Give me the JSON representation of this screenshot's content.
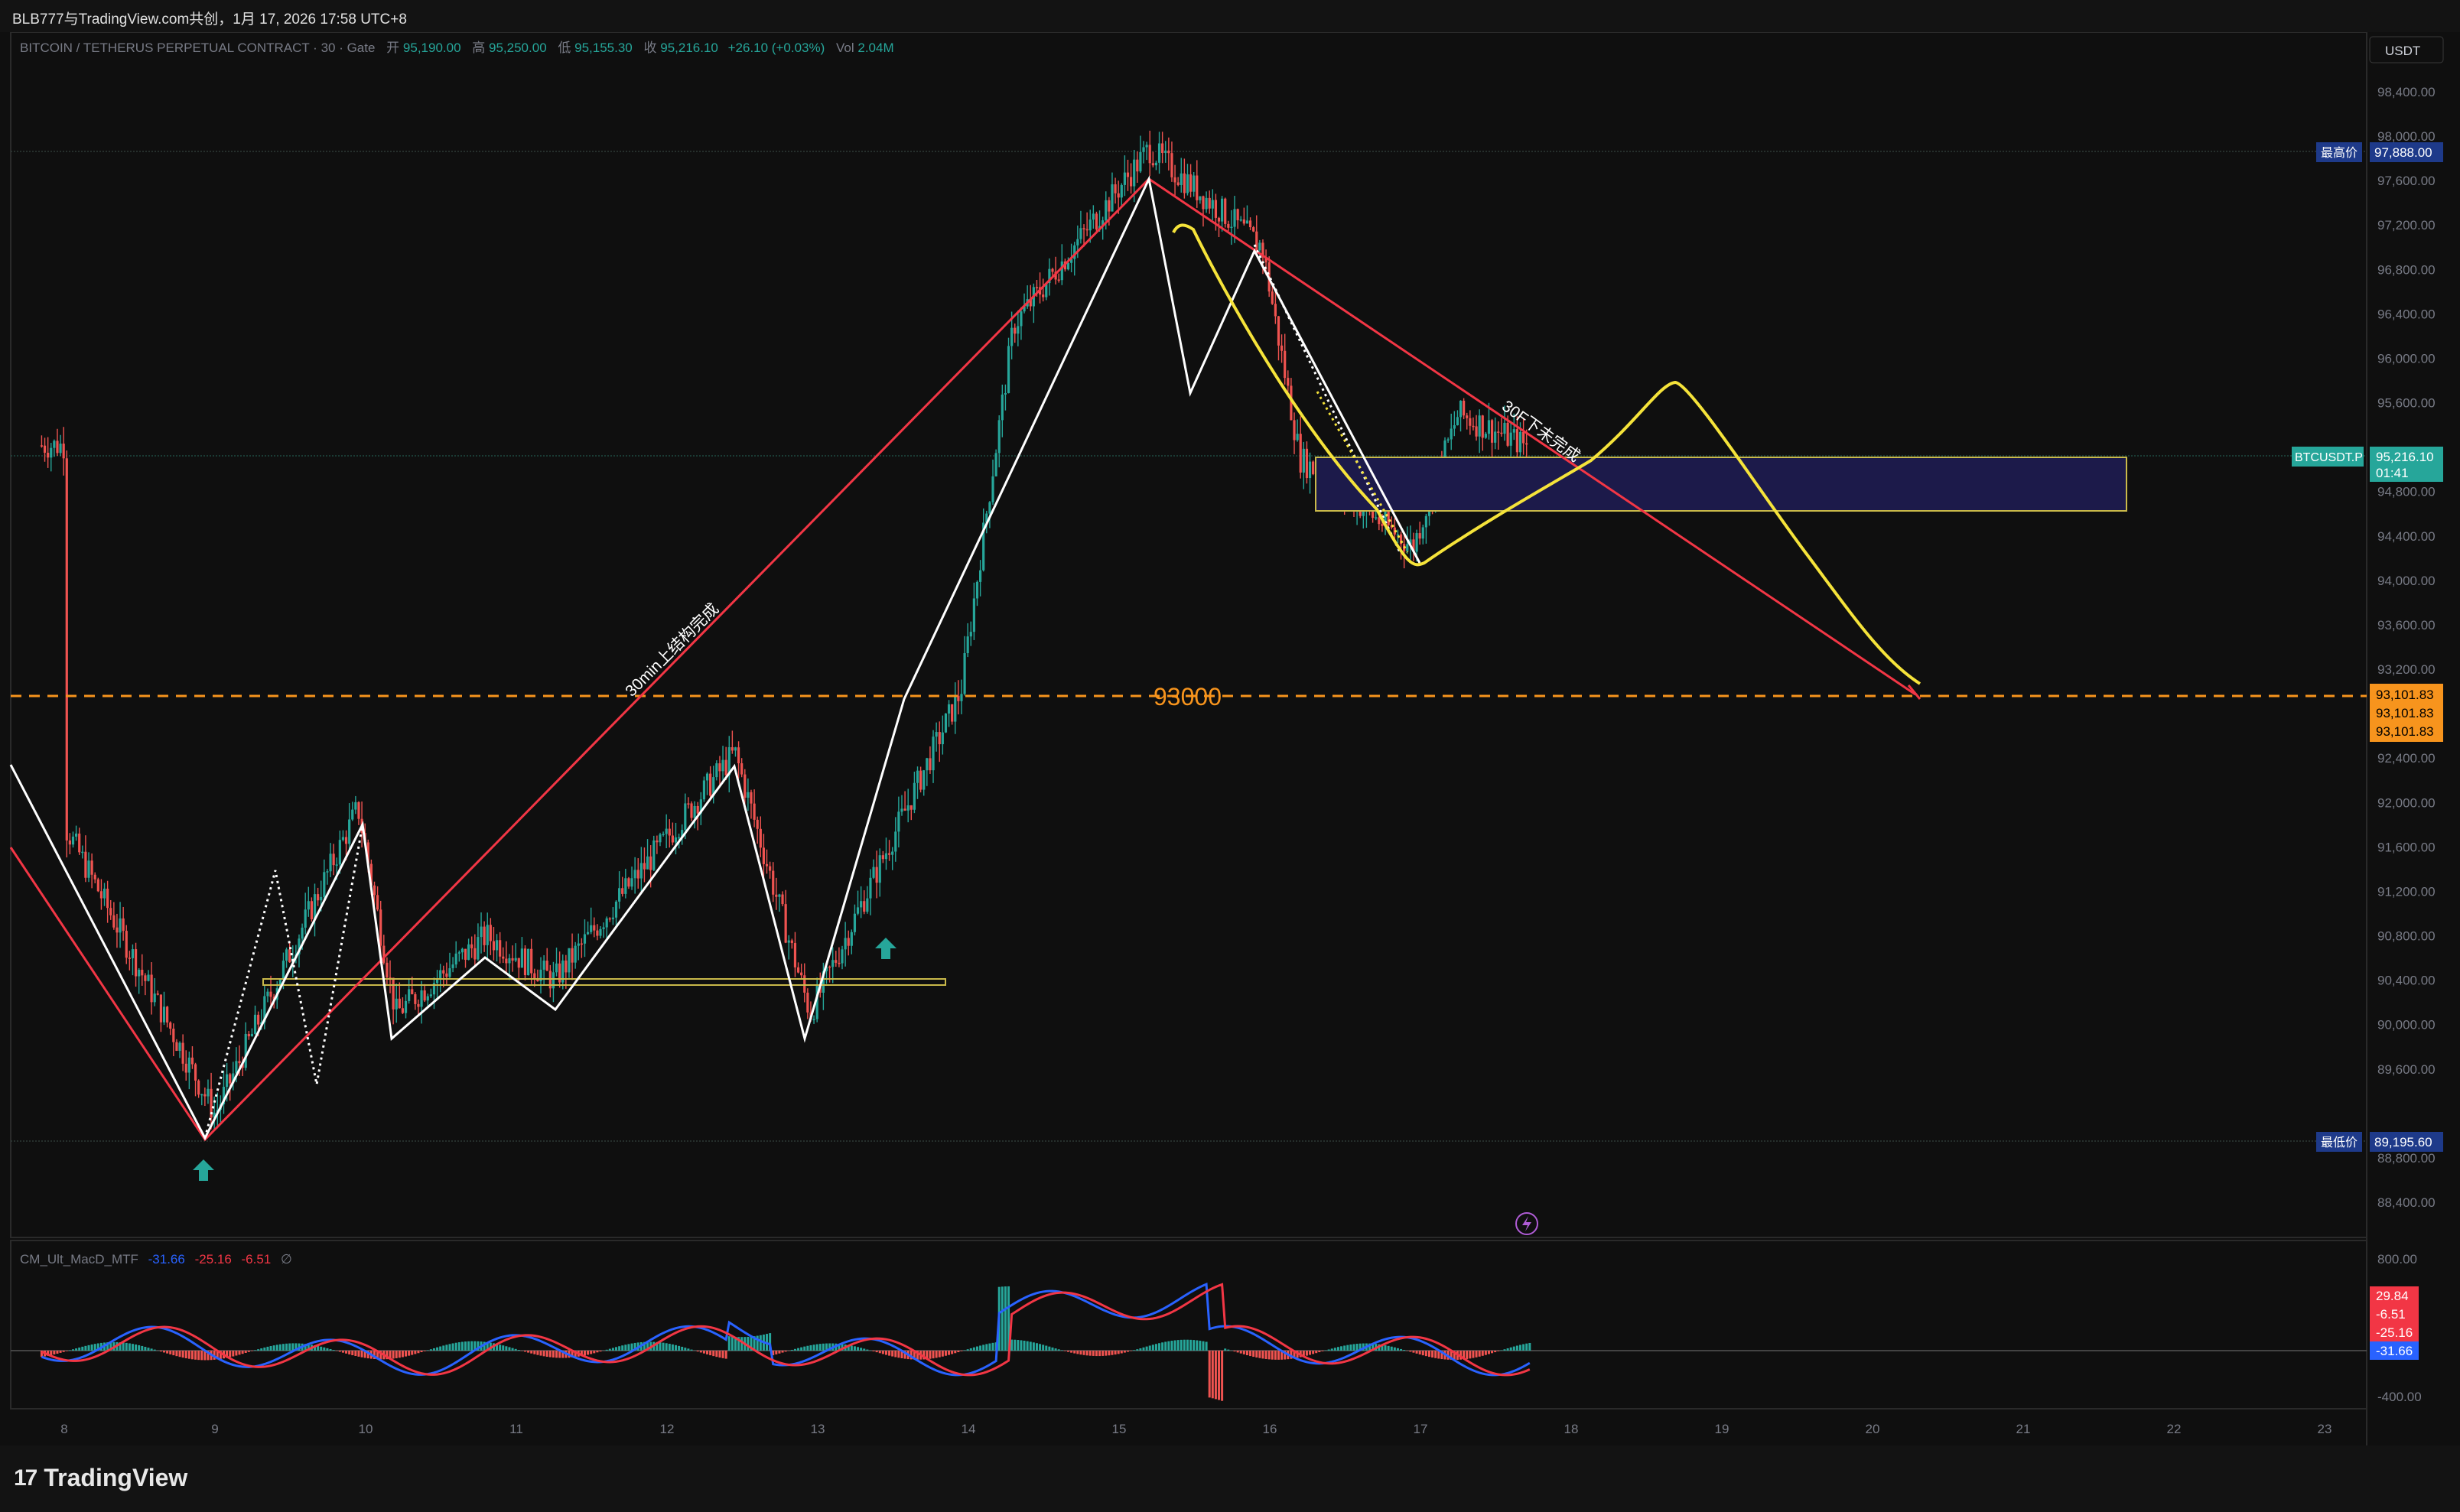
{
  "header": {
    "title": "BLB777与TradingView.com共创，1月 17, 2026 17:58 UTC+8"
  },
  "legend": {
    "symbol": "BITCOIN / TETHERUS PERPETUAL CONTRACT · 30 · Gate",
    "open_label": "开",
    "open": "95,190.00",
    "high_label": "高",
    "high": "95,250.00",
    "low_label": "低",
    "low": "95,155.30",
    "close_label": "收",
    "close": "95,216.10",
    "change": "+26.10 (+0.03%)",
    "vol_label": "Vol",
    "vol": "2.04M"
  },
  "currency_button": "USDT",
  "price_axis": {
    "ticks": [
      "98,400.00",
      "98,000.00",
      "97,600.00",
      "97,200.00",
      "96,800.00",
      "96,400.00",
      "96,000.00",
      "95,600.00",
      "94,800.00",
      "94,400.00",
      "94,000.00",
      "93,600.00",
      "93,200.00",
      "92,400.00",
      "92,000.00",
      "91,600.00",
      "91,200.00",
      "90,800.00",
      "90,400.00",
      "90,000.00",
      "89,600.00",
      "88,800.00",
      "88,400.00"
    ]
  },
  "price_labels": {
    "high_name": "最高价",
    "high_value": "97,888.00",
    "low_name": "最低价",
    "low_value": "89,195.60",
    "symbol_tag": "BTCUSDT.P",
    "last_price": "95,216.10",
    "countdown": "01:41",
    "level_1": "93,101.83",
    "level_2": "93,101.83",
    "level_3": "93,101.83"
  },
  "time_axis": {
    "ticks": [
      "8",
      "9",
      "10",
      "11",
      "12",
      "13",
      "14",
      "15",
      "16",
      "17",
      "18",
      "19",
      "20",
      "21",
      "22",
      "23"
    ]
  },
  "annotations": {
    "up_structure": "30min上结构完成",
    "down_structure": "30F下未完成",
    "level_93000": "93000"
  },
  "macd": {
    "title": "CM_Ult_MacD_MTF",
    "v1": "-31.66",
    "v2": "-25.16",
    "v3": "-6.51",
    "v4": "∅",
    "axis_800": "800.00",
    "axis_neg400": "-400.00",
    "badge_1": "29.84",
    "badge_2": "-6.51",
    "badge_3": "-25.16",
    "badge_4": "-31.66"
  },
  "footer": {
    "brand": "TradingView",
    "logo": "17"
  },
  "colors": {
    "up": "#26a69a",
    "down": "#ef5350",
    "orange": "#f7941d",
    "yellow": "#f5e33a",
    "white": "#ffffff",
    "red_line": "#f23645",
    "zone": "#1c1a4a",
    "macd_blue": "#2962ff"
  },
  "chart_data": {
    "type": "candlestick",
    "symbol": "BITCOIN / TETHERUS PERPETUAL CONTRACT",
    "interval": "30",
    "ylim": [
      88400,
      98600
    ],
    "x_ticks": [
      "8",
      "9",
      "10",
      "11",
      "12",
      "13",
      "14",
      "15",
      "16",
      "17",
      "18",
      "19",
      "20",
      "21",
      "22",
      "23"
    ],
    "key_points": [
      {
        "x": "8",
        "y": 91800
      },
      {
        "x": "9",
        "y": 89196
      },
      {
        "x": "10",
        "y": 91950
      },
      {
        "x": "10",
        "y": 90100
      },
      {
        "x": "11",
        "y": 90800
      },
      {
        "x": "11",
        "y": 90400
      },
      {
        "x": "12",
        "y": 92450
      },
      {
        "x": "13",
        "y": 90100
      },
      {
        "x": "14",
        "y": 93000
      },
      {
        "x": "14",
        "y": 96300
      },
      {
        "x": "15",
        "y": 97888
      },
      {
        "x": "16",
        "y": 97000
      },
      {
        "x": "16",
        "y": 95100
      },
      {
        "x": "17",
        "y": 94300
      },
      {
        "x": "17",
        "y": 95500
      },
      {
        "x": "17",
        "y": 95216
      }
    ],
    "horizontal_levels": [
      93101.83,
      97888.0,
      89195.6
    ],
    "zone": [
      94800,
      95220
    ],
    "last_price": 95216.1
  }
}
